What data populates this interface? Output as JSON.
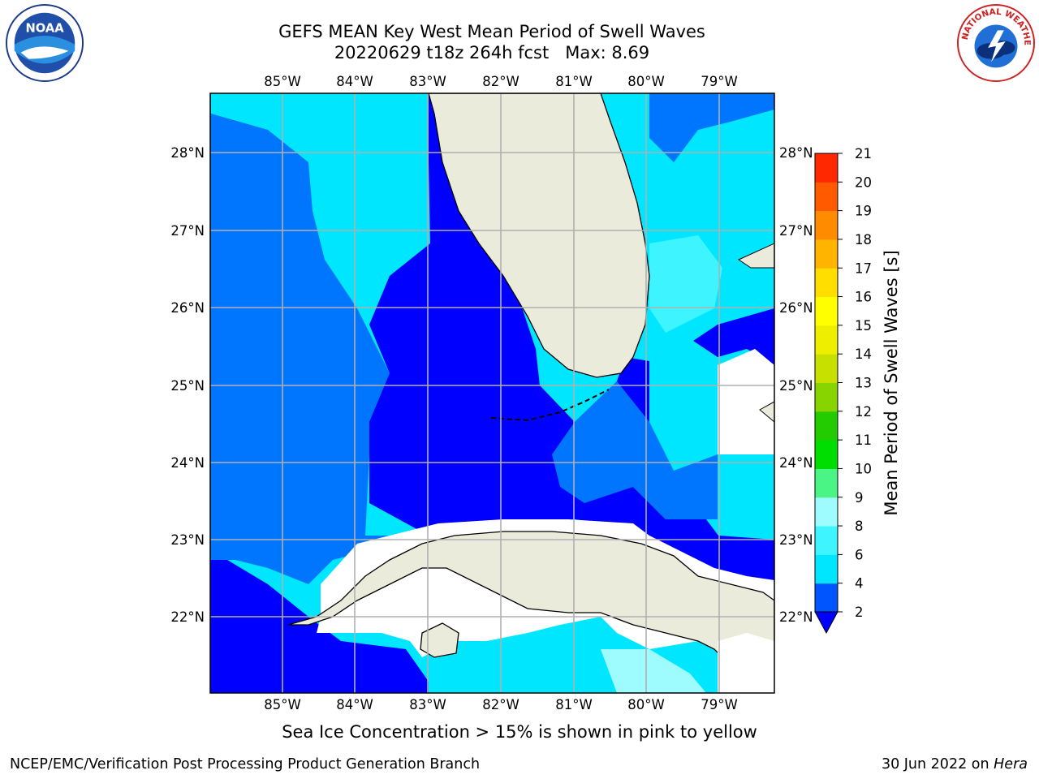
{
  "header": {
    "title_line1": "GEFS MEAN Key West Mean Period of Swell Waves",
    "title_line2": "20220629 t18z 264h fcst   Max: 8.69"
  },
  "logos": {
    "left": {
      "icon": "noaa-logo",
      "label": "NOAA"
    },
    "right": {
      "icon": "nws-logo",
      "ring_text": "NATIONAL WEATHER SERVICE"
    }
  },
  "map": {
    "lon_labels": [
      "85°W",
      "84°W",
      "83°W",
      "82°W",
      "81°W",
      "80°W",
      "79°W"
    ],
    "lat_labels": [
      "28°N",
      "27°N",
      "26°N",
      "25°N",
      "24°N",
      "23°N",
      "22°N"
    ],
    "lon_range": [
      -86.0,
      -78.25
    ],
    "lat_range": [
      21.0,
      28.75
    ],
    "grid": true,
    "land_color": "#ebebdc",
    "coastline_color": "#000000"
  },
  "colorbar": {
    "label": "Mean Period of Swell Waves [s]",
    "ticks": [
      "2",
      "4",
      "6",
      "8",
      "9",
      "10",
      "11",
      "12",
      "13",
      "14",
      "15",
      "16",
      "17",
      "18",
      "19",
      "20",
      "21"
    ],
    "colors": [
      "#0055ff",
      "#00e6ff",
      "#3ef5ff",
      "#9efcff",
      "#4bf585",
      "#00dd00",
      "#22cc00",
      "#88d400",
      "#c8e000",
      "#eeee00",
      "#ffff00",
      "#ffde00",
      "#ffb400",
      "#ff8c00",
      "#ff5a00",
      "#ff2800",
      "#ff0000"
    ],
    "extend_color": "#0000ff"
  },
  "caption": "Sea Ice Concentration > 15% is shown in pink to yellow",
  "footer": {
    "left": "NCEP/EMC/Verification Post Processing Product Generation Branch",
    "right_prefix": "30 Jun 2022 on ",
    "right_machine": "Hera"
  }
}
